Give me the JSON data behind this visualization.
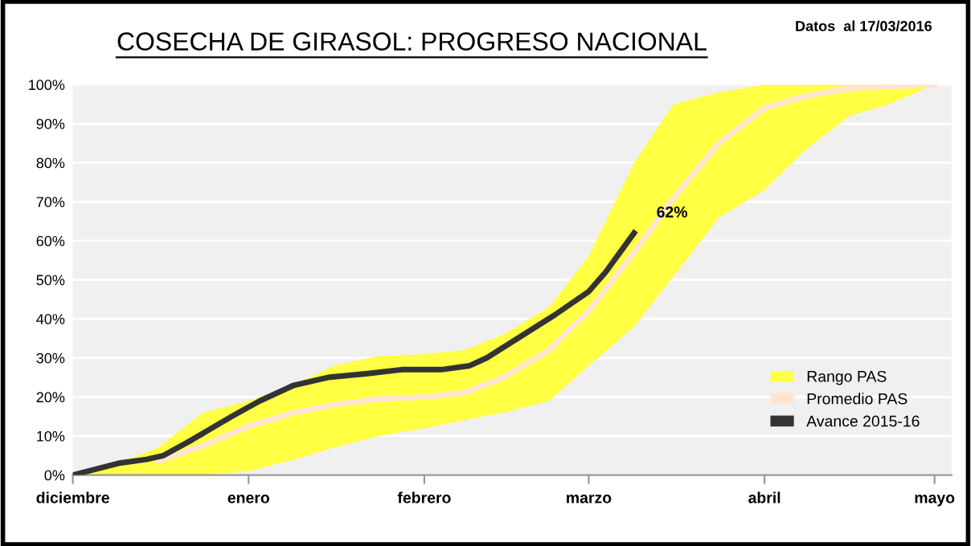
{
  "chart_data": {
    "type": "line",
    "title": "COSECHA DE GIRASOL: PROGRESO NACIONAL",
    "subtitle": "Datos  al 17/03/2016",
    "annotations": [
      {
        "text": "62%",
        "x": "2016-03-09",
        "y": 62
      }
    ],
    "series": [
      {
        "name": "Rango PAS",
        "type": "area",
        "color": "#ffff44"
      },
      {
        "name": "Promedio PAS",
        "color": "#fde5d2",
        "x": [
          "2015-12-01",
          "2015-12-09",
          "2015-12-16",
          "2015-12-24",
          "2016-01-01",
          "2016-01-09",
          "2016-01-16",
          "2016-01-24",
          "2016-02-01",
          "2016-02-08",
          "2016-02-15",
          "2016-02-23",
          "2016-03-01",
          "2016-03-09",
          "2016-03-16",
          "2016-03-24",
          "2016-04-01",
          "2016-04-08",
          "2016-04-16",
          "2016-04-23",
          "2016-05-01"
        ],
        "values": [
          null,
          null,
          3.5,
          7.5,
          12.5,
          16,
          18,
          19.5,
          20,
          21,
          25,
          32,
          42,
          57,
          71,
          85,
          94,
          97,
          99,
          99.5,
          100
        ],
        "upper": [
          0,
          3,
          7,
          16,
          19,
          23,
          28,
          30.5,
          31,
          32,
          36,
          43,
          56,
          80,
          95,
          98,
          100,
          100,
          100,
          100,
          100
        ],
        "lower": [
          0,
          0,
          0,
          0,
          1,
          4,
          7,
          10,
          12,
          14,
          16,
          19,
          28,
          38,
          51,
          66,
          73,
          83,
          92,
          95,
          100
        ]
      },
      {
        "name": "Avance 2015-16",
        "color": "#333333",
        "x": [
          "2015-12-01",
          "2015-12-09",
          "2015-12-14",
          "2015-12-17",
          "2015-12-22",
          "2015-12-29",
          "2016-01-03",
          "2016-01-09",
          "2016-01-15",
          "2016-01-22",
          "2016-01-28",
          "2016-02-04",
          "2016-02-09",
          "2016-02-12",
          "2016-02-18",
          "2016-02-24",
          "2016-03-01",
          "2016-03-04",
          "2016-03-07",
          "2016-03-09"
        ],
        "values": [
          0,
          3,
          4,
          5,
          9,
          15,
          19,
          23,
          25,
          26,
          27,
          27,
          28,
          30,
          35.5,
          41,
          47,
          52,
          58,
          62
        ]
      }
    ],
    "xlim": [
      "2015-12-01",
      "2016-05-04"
    ],
    "xticks": [
      {
        "value": "2015-12-01",
        "label": "diciembre"
      },
      {
        "value": "2016-01-01",
        "label": "enero"
      },
      {
        "value": "2016-02-01",
        "label": "febrero"
      },
      {
        "value": "2016-03-01",
        "label": "marzo"
      },
      {
        "value": "2016-04-01",
        "label": "abril"
      },
      {
        "value": "2016-05-01",
        "label": "mayo"
      }
    ],
    "ylim": [
      0,
      100
    ],
    "yticks": [
      {
        "value": 0,
        "label": "0%"
      },
      {
        "value": 10,
        "label": "10%"
      },
      {
        "value": 20,
        "label": "20%"
      },
      {
        "value": 30,
        "label": "30%"
      },
      {
        "value": 40,
        "label": "40%"
      },
      {
        "value": 50,
        "label": "50%"
      },
      {
        "value": 60,
        "label": "60%"
      },
      {
        "value": 70,
        "label": "70%"
      },
      {
        "value": 80,
        "label": "80%"
      },
      {
        "value": 90,
        "label": "90%"
      },
      {
        "value": 100,
        "label": "100%"
      }
    ],
    "grid": "y",
    "legend": "bottom right"
  }
}
